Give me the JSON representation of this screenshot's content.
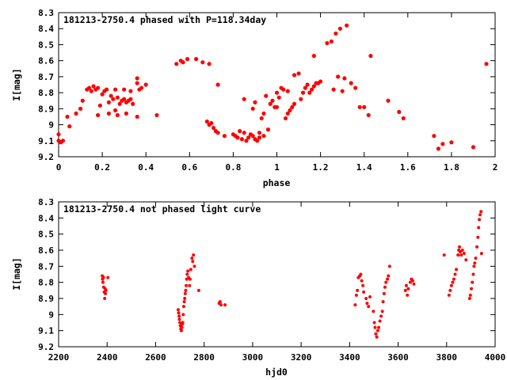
{
  "colors": {
    "marker": "#ff0000",
    "axis": "#000000",
    "background": "#ffffff"
  },
  "chart_data": [
    {
      "type": "scatter",
      "title": "181213-2750.4 phased with P=118.34day",
      "xlabel": "phase",
      "ylabel": "I[mag]",
      "xlim": [
        0,
        2
      ],
      "ylim": [
        8.3,
        9.2
      ],
      "y_inverted": true,
      "grid": false,
      "x_ticks": [
        "0",
        "0.2",
        "0.4",
        "0.6",
        "0.8",
        "1",
        "1.2",
        "1.4",
        "1.6",
        "1.8",
        "2"
      ],
      "y_ticks": [
        "8.3",
        "8.4",
        "8.5",
        "8.6",
        "8.7",
        "8.8",
        "8.9",
        "9",
        "9.1",
        "9.2"
      ],
      "points": [
        [
          0.0,
          9.06
        ],
        [
          0.0,
          9.1
        ],
        [
          0.01,
          9.11
        ],
        [
          0.02,
          9.1
        ],
        [
          0.04,
          8.95
        ],
        [
          0.05,
          9.01
        ],
        [
          0.08,
          8.93
        ],
        [
          0.1,
          8.9
        ],
        [
          0.11,
          8.85
        ],
        [
          0.13,
          8.78
        ],
        [
          0.14,
          8.77
        ],
        [
          0.15,
          8.79
        ],
        [
          0.16,
          8.76
        ],
        [
          0.17,
          8.78
        ],
        [
          0.18,
          8.77
        ],
        [
          0.18,
          8.94
        ],
        [
          0.19,
          8.88
        ],
        [
          0.2,
          8.81
        ],
        [
          0.21,
          8.79
        ],
        [
          0.22,
          8.78
        ],
        [
          0.23,
          8.86
        ],
        [
          0.23,
          8.93
        ],
        [
          0.24,
          8.82
        ],
        [
          0.25,
          8.84
        ],
        [
          0.26,
          8.78
        ],
        [
          0.26,
          8.91
        ],
        [
          0.27,
          8.83
        ],
        [
          0.27,
          8.94
        ],
        [
          0.28,
          8.87
        ],
        [
          0.29,
          8.85
        ],
        [
          0.3,
          8.84
        ],
        [
          0.3,
          8.78
        ],
        [
          0.31,
          8.86
        ],
        [
          0.31,
          8.93
        ],
        [
          0.32,
          8.85
        ],
        [
          0.33,
          8.84
        ],
        [
          0.33,
          8.79
        ],
        [
          0.34,
          8.87
        ],
        [
          0.36,
          8.71
        ],
        [
          0.36,
          8.74
        ],
        [
          0.36,
          8.95
        ],
        [
          0.37,
          8.78
        ],
        [
          0.38,
          8.77
        ],
        [
          0.4,
          8.75
        ],
        [
          0.45,
          8.94
        ],
        [
          0.54,
          8.62
        ],
        [
          0.56,
          8.6
        ],
        [
          0.57,
          8.61
        ],
        [
          0.59,
          8.59
        ],
        [
          0.63,
          8.59
        ],
        [
          0.66,
          8.61
        ],
        [
          0.68,
          8.98
        ],
        [
          0.69,
          8.62
        ],
        [
          0.69,
          9.0
        ],
        [
          0.7,
          8.99
        ],
        [
          0.71,
          9.02
        ],
        [
          0.72,
          9.04
        ],
        [
          0.73,
          8.75
        ],
        [
          0.73,
          9.05
        ],
        [
          0.76,
          9.07
        ],
        [
          0.8,
          9.06
        ],
        [
          0.81,
          9.07
        ],
        [
          0.82,
          9.08
        ],
        [
          0.83,
          9.04
        ],
        [
          0.84,
          9.09
        ],
        [
          0.85,
          9.05
        ],
        [
          0.85,
          8.84
        ],
        [
          0.86,
          9.1
        ],
        [
          0.87,
          9.08
        ],
        [
          0.88,
          9.06
        ],
        [
          0.89,
          9.07
        ],
        [
          0.89,
          8.9
        ],
        [
          0.9,
          9.09
        ],
        [
          0.9,
          8.86
        ],
        [
          0.91,
          9.1
        ],
        [
          0.92,
          9.08
        ],
        [
          0.92,
          9.05
        ],
        [
          0.93,
          8.96
        ],
        [
          0.94,
          9.07
        ],
        [
          0.94,
          8.93
        ],
        [
          0.95,
          8.82
        ],
        [
          0.96,
          9.03
        ],
        [
          0.97,
          8.87
        ],
        [
          0.98,
          8.85
        ],
        [
          0.99,
          8.89
        ],
        [
          1.0,
          8.8
        ],
        [
          1.0,
          8.89
        ],
        [
          1.01,
          8.83
        ],
        [
          1.02,
          8.77
        ],
        [
          1.03,
          8.78
        ],
        [
          1.04,
          8.96
        ],
        [
          1.05,
          8.93
        ],
        [
          1.05,
          8.79
        ],
        [
          1.06,
          8.91
        ],
        [
          1.07,
          8.89
        ],
        [
          1.08,
          8.87
        ],
        [
          1.08,
          8.69
        ],
        [
          1.1,
          8.68
        ],
        [
          1.11,
          8.84
        ],
        [
          1.12,
          8.8
        ],
        [
          1.13,
          8.77
        ],
        [
          1.14,
          8.75
        ],
        [
          1.15,
          8.8
        ],
        [
          1.16,
          8.78
        ],
        [
          1.17,
          8.76
        ],
        [
          1.17,
          8.57
        ],
        [
          1.18,
          8.74
        ],
        [
          1.19,
          8.74
        ],
        [
          1.2,
          8.73
        ],
        [
          1.23,
          8.49
        ],
        [
          1.25,
          8.48
        ],
        [
          1.26,
          8.78
        ],
        [
          1.27,
          8.43
        ],
        [
          1.28,
          8.7
        ],
        [
          1.29,
          8.4
        ],
        [
          1.3,
          8.79
        ],
        [
          1.31,
          8.71
        ],
        [
          1.32,
          8.38
        ],
        [
          1.34,
          8.74
        ],
        [
          1.36,
          8.77
        ],
        [
          1.38,
          8.89
        ],
        [
          1.4,
          8.89
        ],
        [
          1.42,
          8.94
        ],
        [
          1.43,
          8.57
        ],
        [
          1.51,
          8.85
        ],
        [
          1.56,
          8.92
        ],
        [
          1.58,
          8.96
        ],
        [
          1.72,
          9.07
        ],
        [
          1.74,
          9.15
        ],
        [
          1.76,
          9.12
        ],
        [
          1.8,
          9.11
        ],
        [
          1.9,
          9.14
        ],
        [
          1.96,
          8.62
        ]
      ]
    },
    {
      "type": "scatter",
      "title": "181213-2750.4 not phased light curve",
      "xlabel": "hjd0",
      "ylabel": "I[mag]",
      "xlim": [
        2200,
        4000
      ],
      "ylim": [
        8.3,
        9.2
      ],
      "y_inverted": true,
      "grid": false,
      "x_ticks": [
        "2200",
        "2400",
        "2600",
        "2800",
        "3000",
        "3200",
        "3400",
        "3600",
        "3800",
        "4000"
      ],
      "y_ticks": [
        "8.3",
        "8.4",
        "8.5",
        "8.6",
        "8.7",
        "8.8",
        "8.9",
        "9",
        "9.1",
        "9.2"
      ],
      "points": [
        [
          2380,
          8.76
        ],
        [
          2381,
          8.78
        ],
        [
          2383,
          8.8
        ],
        [
          2385,
          8.77
        ],
        [
          2386,
          8.83
        ],
        [
          2388,
          8.86
        ],
        [
          2390,
          8.9
        ],
        [
          2392,
          8.84
        ],
        [
          2393,
          8.87
        ],
        [
          2395,
          8.85
        ],
        [
          2403,
          8.77
        ],
        [
          2693,
          8.97
        ],
        [
          2695,
          8.99
        ],
        [
          2697,
          9.01
        ],
        [
          2698,
          9.03
        ],
        [
          2700,
          9.05
        ],
        [
          2702,
          9.07
        ],
        [
          2704,
          9.09
        ],
        [
          2706,
          9.1
        ],
        [
          2708,
          9.08
        ],
        [
          2710,
          9.06
        ],
        [
          2712,
          9.05
        ],
        [
          2714,
          9.0
        ],
        [
          2716,
          8.95
        ],
        [
          2718,
          8.92
        ],
        [
          2720,
          8.9
        ],
        [
          2722,
          8.87
        ],
        [
          2724,
          8.85
        ],
        [
          2726,
          8.82
        ],
        [
          2728,
          8.78
        ],
        [
          2730,
          8.75
        ],
        [
          2733,
          8.73
        ],
        [
          2736,
          8.77
        ],
        [
          2740,
          8.82
        ],
        [
          2742,
          8.78
        ],
        [
          2745,
          8.72
        ],
        [
          2750,
          8.65
        ],
        [
          2753,
          8.67
        ],
        [
          2756,
          8.63
        ],
        [
          2760,
          8.7
        ],
        [
          2778,
          8.85
        ],
        [
          2862,
          8.93
        ],
        [
          2866,
          8.92
        ],
        [
          2870,
          8.94
        ],
        [
          2886,
          8.94
        ],
        [
          3423,
          8.94
        ],
        [
          3428,
          8.88
        ],
        [
          3432,
          8.85
        ],
        [
          3436,
          8.77
        ],
        [
          3442,
          8.76
        ],
        [
          3446,
          8.75
        ],
        [
          3450,
          8.79
        ],
        [
          3455,
          8.82
        ],
        [
          3458,
          8.86
        ],
        [
          3468,
          8.9
        ],
        [
          3472,
          8.93
        ],
        [
          3478,
          8.95
        ],
        [
          3484,
          8.89
        ],
        [
          3498,
          8.98
        ],
        [
          3502,
          9.05
        ],
        [
          3505,
          9.08
        ],
        [
          3508,
          9.12
        ],
        [
          3512,
          9.14
        ],
        [
          3516,
          9.1
        ],
        [
          3520,
          9.08
        ],
        [
          3525,
          9.04
        ],
        [
          3530,
          9.01
        ],
        [
          3535,
          8.98
        ],
        [
          3538,
          8.92
        ],
        [
          3542,
          8.87
        ],
        [
          3546,
          8.83
        ],
        [
          3550,
          8.8
        ],
        [
          3556,
          8.78
        ],
        [
          3560,
          8.76
        ],
        [
          3565,
          8.7
        ],
        [
          3630,
          8.85
        ],
        [
          3634,
          8.82
        ],
        [
          3638,
          8.88
        ],
        [
          3642,
          8.84
        ],
        [
          3650,
          8.8
        ],
        [
          3655,
          8.78
        ],
        [
          3660,
          8.79
        ],
        [
          3665,
          8.81
        ],
        [
          3790,
          8.63
        ],
        [
          3810,
          8.88
        ],
        [
          3815,
          8.85
        ],
        [
          3820,
          8.82
        ],
        [
          3825,
          8.8
        ],
        [
          3830,
          8.78
        ],
        [
          3835,
          8.75
        ],
        [
          3840,
          8.72
        ],
        [
          3847,
          8.63
        ],
        [
          3850,
          8.6
        ],
        [
          3853,
          8.58
        ],
        [
          3856,
          8.61
        ],
        [
          3860,
          8.63
        ],
        [
          3865,
          8.6
        ],
        [
          3872,
          8.62
        ],
        [
          3880,
          8.66
        ],
        [
          3895,
          8.9
        ],
        [
          3898,
          8.88
        ],
        [
          3902,
          8.84
        ],
        [
          3906,
          8.8
        ],
        [
          3910,
          8.75
        ],
        [
          3913,
          8.7
        ],
        [
          3916,
          8.68
        ],
        [
          3920,
          8.65
        ],
        [
          3925,
          8.58
        ],
        [
          3929,
          8.52
        ],
        [
          3932,
          8.46
        ],
        [
          3935,
          8.41
        ],
        [
          3938,
          8.38
        ],
        [
          3942,
          8.36
        ],
        [
          3944,
          8.62
        ]
      ]
    }
  ]
}
